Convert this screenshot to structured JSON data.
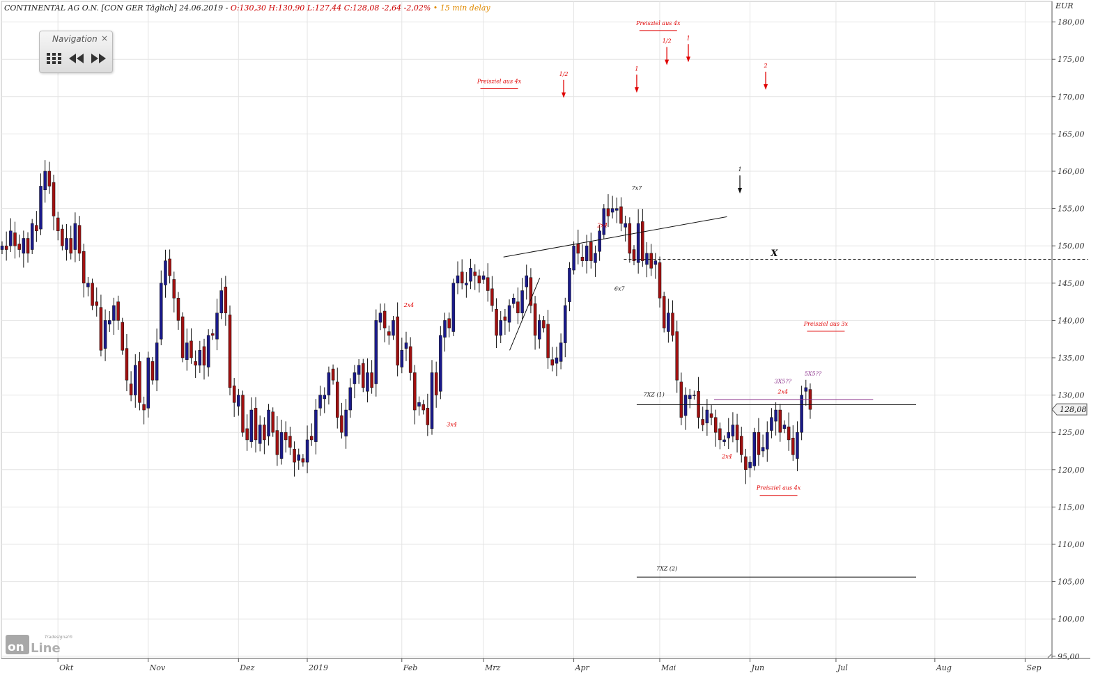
{
  "header": {
    "title": "CONTINENTAL AG O.N. [CON GER Täglich] 24.06.2019 -",
    "ohlc": "O:130,30 H:130,90 L:127,44 C:128,08 -2,64 -2,02%",
    "delay": "• 15 min delay"
  },
  "navigation": {
    "title": "Navigation",
    "close": "×",
    "grid_icon": "grid-icon",
    "back_icon": "rewind-icon",
    "forward_icon": "fast-forward-icon"
  },
  "logo": {
    "brand": "Tradesignal",
    "text": "online"
  },
  "colors": {
    "up": "#1a1a8a",
    "down": "#a01010",
    "grid": "#e4e4e4",
    "annotation_red": "#e00000",
    "purple": "#8a2f8a"
  },
  "chart_data": {
    "type": "candlestick",
    "currency": "EUR",
    "ylim": [
      95,
      182
    ],
    "y_ticks": [
      "95,00",
      "100,00",
      "105,00",
      "110,00",
      "115,00",
      "120,00",
      "125,00",
      "130,00",
      "135,00",
      "140,00",
      "145,00",
      "150,00",
      "155,00",
      "160,00",
      "165,00",
      "170,00",
      "175,00",
      "180,00"
    ],
    "x_labels": [
      {
        "label": "Okt",
        "day": 1
      },
      {
        "label": "Nov",
        "day": 22
      },
      {
        "label": "Dez",
        "day": 43
      },
      {
        "label": "2019",
        "day": 59
      },
      {
        "label": "Feb",
        "day": 81
      },
      {
        "label": "Mrz",
        "day": 100
      },
      {
        "label": "Apr",
        "day": 121
      },
      {
        "label": "Mai",
        "day": 141
      },
      {
        "label": "Jun",
        "day": 162
      },
      {
        "label": "Jul",
        "day": 182
      },
      {
        "label": "Aug",
        "day": 205
      },
      {
        "label": "Sep",
        "day": 226
      }
    ],
    "last_price": "128,08",
    "last_value": 128.08,
    "closes": [
      150,
      149.5,
      152,
      150,
      149.5,
      151,
      149,
      153,
      152,
      158,
      160,
      158,
      154,
      152,
      150,
      151,
      149,
      153,
      149,
      145,
      145,
      142,
      142,
      136,
      140,
      140,
      142,
      140,
      136,
      132,
      130,
      134,
      129,
      128,
      135,
      132,
      137,
      145,
      148,
      146,
      143,
      140,
      135,
      137,
      135,
      134,
      136,
      134,
      138,
      138,
      141,
      144,
      141,
      131,
      129,
      130,
      125,
      124,
      128,
      124,
      126,
      124,
      128,
      125,
      122,
      125,
      124,
      123,
      121,
      122,
      121,
      124,
      124,
      128,
      130,
      130,
      133,
      132,
      127,
      125,
      128,
      131,
      133,
      134,
      131,
      133,
      131,
      140,
      141,
      139,
      138,
      140,
      134,
      136,
      137,
      133,
      128,
      129,
      128,
      126,
      133,
      130,
      138,
      140,
      139,
      145,
      146,
      145,
      145,
      147,
      146,
      145,
      146,
      144,
      142,
      138,
      140,
      140,
      142,
      143,
      141,
      144,
      146,
      142,
      138,
      140,
      139,
      135,
      134,
      135,
      137,
      142,
      147,
      150,
      149,
      148,
      150,
      148,
      149,
      152,
      155,
      154,
      155,
      155,
      153,
      153,
      149,
      148,
      153,
      148,
      149,
      147,
      148,
      143,
      139,
      141,
      138,
      132,
      127,
      130,
      130,
      130,
      127,
      126,
      128,
      127,
      125,
      124,
      124,
      125,
      126,
      124,
      122,
      120,
      121,
      125,
      122,
      123,
      125,
      127,
      128,
      125,
      126,
      124,
      122,
      125,
      130,
      131,
      128.08
    ],
    "annotations": [
      {
        "text": "Preisziel aus 4x",
        "day": 103,
        "price": 171.8,
        "color": "red",
        "underline": true
      },
      {
        "text": "1/2",
        "day": 118,
        "price": 172.8,
        "color": "red",
        "arrow": "down"
      },
      {
        "text": "1",
        "day": 135,
        "price": 173.5,
        "color": "red",
        "arrow": "down"
      },
      {
        "text": "Preisziel aus 4x",
        "day": 140,
        "price": 179.6,
        "color": "red",
        "underline": true
      },
      {
        "text": "1/2",
        "day": 142,
        "price": 177.2,
        "color": "red",
        "arrow": "down"
      },
      {
        "text": "1",
        "day": 147,
        "price": 177.6,
        "color": "red",
        "arrow": "down"
      },
      {
        "text": "2",
        "day": 165,
        "price": 173.9,
        "color": "red",
        "arrow": "down"
      },
      {
        "text": "1",
        "day": 159,
        "price": 160,
        "color": "black",
        "arrow": "down"
      },
      {
        "text": "7x7",
        "day": 135,
        "price": 157.5,
        "color": "black"
      },
      {
        "text": "6x7",
        "day": 131,
        "price": 144,
        "color": "black"
      },
      {
        "text": "2x4",
        "day": 127,
        "price": 152.5,
        "color": "red"
      },
      {
        "text": "X",
        "day": 167,
        "price": 148.6,
        "color": "black"
      },
      {
        "text": "2x4",
        "day": 82,
        "price": 141.8,
        "color": "red"
      },
      {
        "text": "3x4",
        "day": 92,
        "price": 125.8,
        "color": "red"
      },
      {
        "text": "Preisziel aus 3x",
        "day": 179,
        "price": 139.3,
        "color": "red",
        "underline": true
      },
      {
        "text": "3X5??",
        "day": 169,
        "price": 131.6,
        "color": "purple"
      },
      {
        "text": "2x4",
        "day": 169,
        "price": 130.2,
        "color": "red"
      },
      {
        "text": "5X5??",
        "day": 176,
        "price": 132.6,
        "color": "purple"
      },
      {
        "text": "7XZ (1)",
        "day": 139,
        "price": 129.8,
        "color": "black"
      },
      {
        "text": "2x4",
        "day": 156,
        "price": 121.5,
        "color": "red"
      },
      {
        "text": "Preisziel aus 4x",
        "day": 168,
        "price": 117.3,
        "color": "red",
        "underline": true
      },
      {
        "text": "7XZ (2)",
        "day": 142,
        "price": 106.5,
        "color": "black"
      }
    ],
    "lines": [
      {
        "name": "trendline",
        "from": {
          "day": 104,
          "price": 148.5
        },
        "to": {
          "day": 156,
          "price": 153.9
        },
        "style": "solid"
      },
      {
        "name": "x-level",
        "from": {
          "day": 132,
          "price": 148.2
        },
        "to": {
          "day": 240,
          "price": 148.2
        },
        "style": "dashed"
      },
      {
        "name": "7xz1-level",
        "from": {
          "day": 135,
          "price": 128.7
        },
        "to": {
          "day": 200,
          "price": 128.7
        },
        "style": "solid"
      },
      {
        "name": "purple-level",
        "from": {
          "day": 153,
          "price": 129.4
        },
        "to": {
          "day": 190,
          "price": 129.4
        },
        "style": "purple"
      },
      {
        "name": "7xz2-level",
        "from": {
          "day": 135,
          "price": 105.6
        },
        "to": {
          "day": 200,
          "price": 105.6
        },
        "style": "solid"
      },
      {
        "name": "small-wedge",
        "from": {
          "day": 109,
          "price": 136
        },
        "to": {
          "day": 116,
          "price": 145.7
        },
        "style": "solid"
      }
    ]
  }
}
